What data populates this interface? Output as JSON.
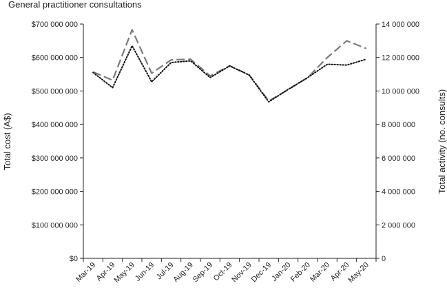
{
  "chart_data": {
    "type": "line",
    "title": "General practitioner consultations",
    "categories": [
      "Mar-19",
      "Apr-19",
      "May-19",
      "Jun-19",
      "Jul-19",
      "Aug-19",
      "Sep-19",
      "Oct-19",
      "Nov-19",
      "Dec-19",
      "Jan-20",
      "Feb-20",
      "Mar-20",
      "Apr-20",
      "May-20"
    ],
    "y_left": {
      "label": "Total cost (A$)",
      "lim": [
        0,
        700000000
      ],
      "ticks": [
        "$0",
        "$100 000 000",
        "$200 000 000",
        "$300 000 000",
        "$400 000 000",
        "$500 000 000",
        "$600 000 000",
        "$700 000 000"
      ]
    },
    "y_right": {
      "label": "Total activity (no. consults)",
      "lim": [
        0,
        14000000
      ],
      "ticks": [
        "0",
        "2 000 000",
        "4 000 000",
        "6 000 000",
        "8 000 000",
        "10 000 000",
        "12 000 000",
        "14 000 000"
      ]
    },
    "grid": false,
    "legend": "none",
    "series": [
      {
        "axis": "left",
        "style": "dash",
        "color": "#7a7a7a",
        "values": [
          557000000,
          532000000,
          683000000,
          553000000,
          593000000,
          595000000,
          545000000,
          575000000,
          548000000,
          470000000,
          504000000,
          540000000,
          600000000,
          650000000,
          627000000
        ]
      },
      {
        "axis": "right",
        "style": "dot",
        "color": "#111111",
        "values": [
          11100000,
          10200000,
          12700000,
          10550000,
          11700000,
          11800000,
          10800000,
          11500000,
          10950000,
          9350000,
          10100000,
          10800000,
          11600000,
          11550000,
          11900000
        ]
      }
    ]
  }
}
